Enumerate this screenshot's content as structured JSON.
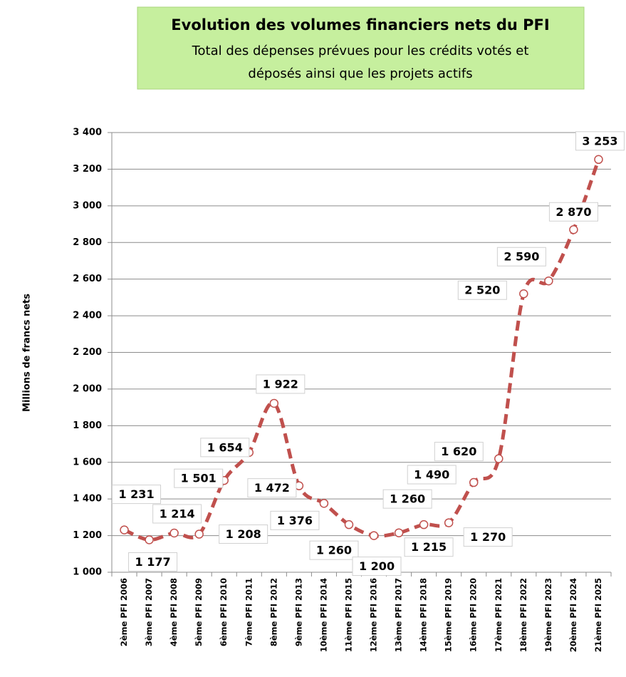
{
  "chart_data": {
    "type": "line",
    "title": "Evolution des volumes financiers nets du PFI",
    "subtitle": [
      "Total des dépenses prévues pour les crédits votés et",
      "déposés ainsi que les projets actifs"
    ],
    "y_label": "Millions de francs nets",
    "categories": [
      "2ème PFI 2006",
      "3ème PFI 2007",
      "4ème PFI 2008",
      "5ème PFI 2009",
      "6ème PFI 2010",
      "7ème PFI 2011",
      "8ème PFI 2012",
      "9ème PFI 2013",
      "10ème PFI 2014",
      "11ème PFI 2015",
      "12ème PFI 2016",
      "13ème PFI 2017",
      "14ème PFI 2018",
      "15ème PFI 2019",
      "16ème PFI 2020",
      "17ème PFI 2021",
      "18ème PFI 2022",
      "19ème PFI 2023",
      "20ème PFI 2024",
      "21ème PFI 2025"
    ],
    "values": [
      1231,
      1177,
      1214,
      1208,
      1501,
      1654,
      1922,
      1472,
      1376,
      1260,
      1200,
      1215,
      1260,
      1270,
      1490,
      1620,
      2520,
      2590,
      2870,
      3253
    ],
    "value_labels": [
      "1 231",
      "1 177",
      "1 214",
      "1 208",
      "1 501",
      "1 654",
      "1 922",
      "1 472",
      "1 376",
      "1 260",
      "1 200",
      "1 215",
      "1 260",
      "1 270",
      "1 490",
      "1 620",
      "2 520",
      "2 590",
      "2 870",
      "3 253"
    ],
    "color": "#c0504d",
    "ylim": [
      1000,
      3400
    ],
    "yticks": [
      {
        "value": 1000,
        "label": "1 000"
      },
      {
        "value": 1200,
        "label": "1 200"
      },
      {
        "value": 1400,
        "label": "1 400"
      },
      {
        "value": 1600,
        "label": "1 600"
      },
      {
        "value": 1800,
        "label": "1 800"
      },
      {
        "value": 2000,
        "label": "2 000"
      },
      {
        "value": 2200,
        "label": "2 200"
      },
      {
        "value": 2400,
        "label": "2 400"
      },
      {
        "value": 2600,
        "label": "2 600"
      },
      {
        "value": 2800,
        "label": "2 800"
      },
      {
        "value": 3000,
        "label": "3 000"
      },
      {
        "value": 3200,
        "label": "3 200"
      },
      {
        "value": 3400,
        "label": "3 400"
      }
    ],
    "grid": true
  }
}
